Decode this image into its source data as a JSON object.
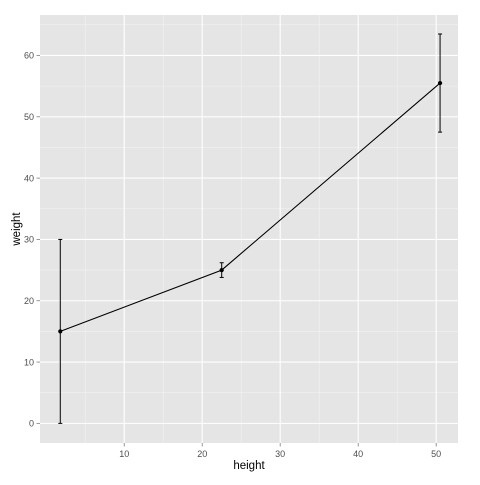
{
  "chart_data": {
    "type": "line",
    "xlabel": "height",
    "ylabel": "weight",
    "xlim": [
      -0.8,
      52.8
    ],
    "ylim": [
      -3.2,
      66.6
    ],
    "x_ticks": [
      10,
      20,
      30,
      40,
      50
    ],
    "y_ticks": [
      0,
      10,
      20,
      30,
      40,
      50,
      60
    ],
    "x_tick_labels": [
      "10",
      "20",
      "30",
      "40",
      "50"
    ],
    "y_tick_labels": [
      "0",
      "10",
      "20",
      "30",
      "40",
      "50",
      "60"
    ],
    "grid": true,
    "legend": "none",
    "series": [
      {
        "points": [
          {
            "x": 1.8,
            "y": 15,
            "ymin": 0,
            "ymax": 30
          },
          {
            "x": 22.5,
            "y": 25,
            "ymin": 23.8,
            "ymax": 26.2
          },
          {
            "x": 50.5,
            "y": 55.5,
            "ymin": 47.5,
            "ymax": 63.5
          }
        ]
      }
    ],
    "colors": {
      "panel_background": "#e5e5e5",
      "grid_major": "#ffffff",
      "grid_minor": "#f2f2f2",
      "series_line": "#000000",
      "tick_text": "#4d4d4d",
      "tick_mark": "#7f7f7f"
    }
  }
}
